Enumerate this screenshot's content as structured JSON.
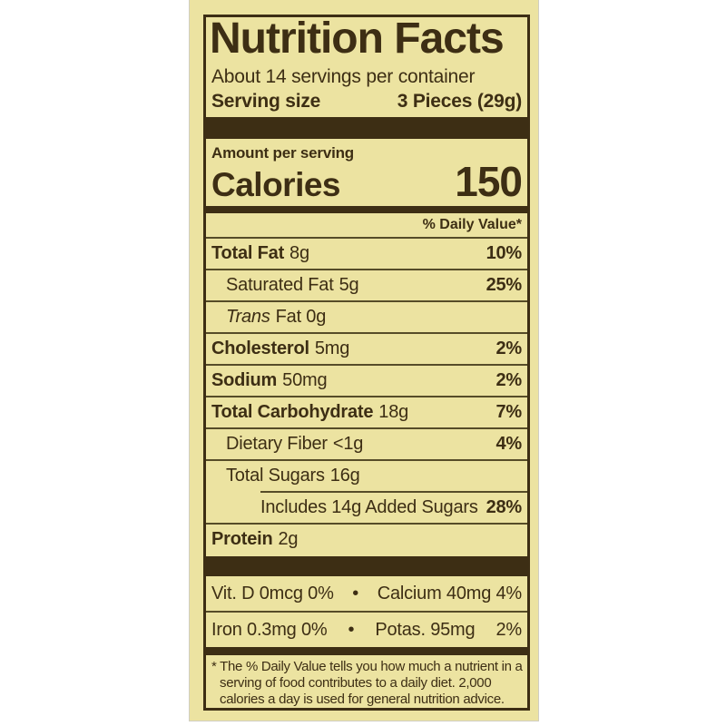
{
  "label": {
    "colors": {
      "background": "#ece3a1",
      "ink": "#3d2e14",
      "thin_divider": "#564c28",
      "page": "#ffffff"
    },
    "header": {
      "title": "Nutrition Facts",
      "servings": "About 14 servings per container",
      "serving_size_label": "Serving size",
      "serving_size_value": "3 Pieces (29g)"
    },
    "calories": {
      "amount_per_serving": "Amount per serving",
      "label": "Calories",
      "value": "150"
    },
    "daily_value_header": "% Daily Value*",
    "nutrients": [
      {
        "name": "Total Fat",
        "amount": "8g",
        "dv": "10%",
        "style": "bold",
        "indent": 0
      },
      {
        "name": "Saturated Fat",
        "amount": "5g",
        "dv": "25%",
        "style": "plain",
        "indent": 1
      },
      {
        "name": "Trans",
        "amount": "Fat 0g",
        "dv": "",
        "style": "italic",
        "indent": 1
      },
      {
        "name": "Cholesterol",
        "amount": "5mg",
        "dv": "2%",
        "style": "bold",
        "indent": 0
      },
      {
        "name": "Sodium",
        "amount": "50mg",
        "dv": "2%",
        "style": "bold",
        "indent": 0
      },
      {
        "name": "Total Carbohydrate",
        "amount": "18g",
        "dv": "7%",
        "style": "bold",
        "indent": 0
      },
      {
        "name": "Dietary Fiber",
        "amount": "<1g",
        "dv": "4%",
        "style": "plain",
        "indent": 1
      },
      {
        "name": "Total Sugars",
        "amount": "16g",
        "dv": "",
        "style": "plain",
        "indent": 1
      },
      {
        "name": "Includes 14g Added Sugars",
        "amount": "",
        "dv": "28%",
        "style": "plain",
        "indent": 2,
        "divider_indented": true
      },
      {
        "name": "Protein",
        "amount": "2g",
        "dv": "",
        "style": "bold",
        "indent": 0
      }
    ],
    "micronutrients": [
      {
        "parts": [
          "Vit. D 0mcg 0%",
          "•",
          "Calcium 40mg 4%"
        ]
      },
      {
        "parts": [
          "Iron 0.3mg 0%",
          "•",
          "Potas. 95mg",
          "2%"
        ]
      }
    ],
    "footnote": "* The % Daily Value tells you how much a nutrient in a serving of food contributes to a daily diet. 2,000 calories a day is used for general nutrition advice."
  }
}
